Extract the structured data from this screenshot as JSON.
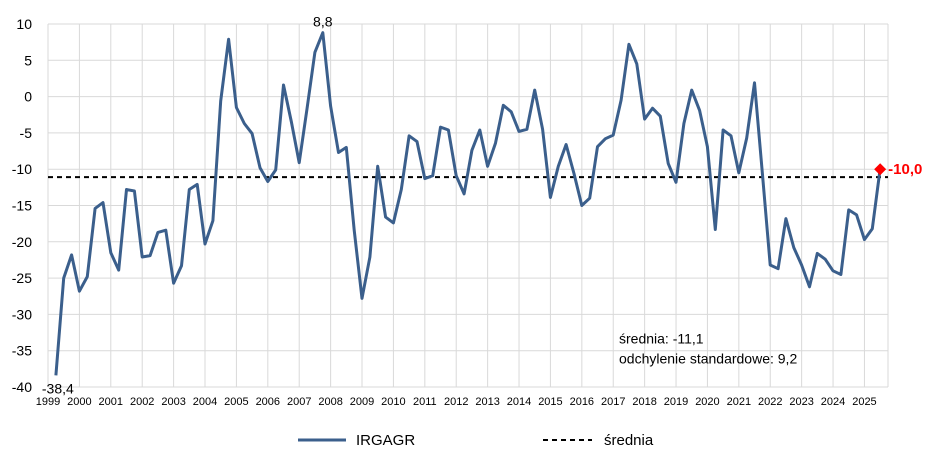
{
  "chart_data": {
    "type": "line",
    "title": "",
    "xlabel": "",
    "ylabel": "",
    "ylim": [
      -40,
      10
    ],
    "yticks": [
      10,
      5,
      0,
      -5,
      -10,
      -15,
      -20,
      -25,
      -30,
      -35,
      -40
    ],
    "ytick_labels": [
      "10",
      "5",
      "0",
      "-5",
      "-10",
      "-15",
      "-20",
      "-25",
      "-30",
      "-35",
      "-40"
    ],
    "xlim": [
      1999.0,
      2025.75
    ],
    "xtick_labels": [
      "1999",
      "2000",
      "2001",
      "2002",
      "2003",
      "2004",
      "2005",
      "2006",
      "2007",
      "2008",
      "2009",
      "2010",
      "2011",
      "2012",
      "2013",
      "2014",
      "2015",
      "2016",
      "2017",
      "2018",
      "2019",
      "2020",
      "2021",
      "2022",
      "2023",
      "2024",
      "2025"
    ],
    "grid": true,
    "legend_position": "bottom",
    "series": [
      {
        "name": "IRGAGR",
        "color": "#3b5f8c",
        "x_start": 1999.25,
        "x_step": 0.25,
        "values": [
          -38.4,
          -25,
          -21.8,
          -26.8,
          -24.8,
          -15.4,
          -14.6,
          -21.5,
          -23.9,
          -12.8,
          -13,
          -22.1,
          -21.9,
          -18.7,
          -18.4,
          -25.7,
          -23.3,
          -12.8,
          -12.1,
          -20.3,
          -17.1,
          -0.6,
          7.9,
          -1.5,
          -3.7,
          -5.1,
          -9.8,
          -11.7,
          -10.1,
          1.6,
          -3.5,
          -9.1,
          -1.6,
          6.1,
          8.8,
          -1.3,
          -7.7,
          -7,
          -18.4,
          -27.8,
          -22.1,
          -9.6,
          -16.6,
          -17.4,
          -12.8,
          -5.4,
          -6.2,
          -11.3,
          -10.9,
          -4.2,
          -4.6,
          -10.9,
          -13.4,
          -7.4,
          -4.6,
          -9.6,
          -6.4,
          -1.2,
          -2.1,
          -4.8,
          -4.5,
          0.9,
          -4.5,
          -13.9,
          -9.6,
          -6.6,
          -10.6,
          -15,
          -14,
          -6.9,
          -5.8,
          -5.3,
          -0.5,
          7.2,
          4.5,
          -3.1,
          -1.6,
          -2.7,
          -9.2,
          -11.8,
          -3.7,
          0.9,
          -1.9,
          -6.9,
          -18.3,
          -4.6,
          -5.4,
          -10.5,
          -5.7,
          1.9,
          -10.6,
          -23.2,
          -23.7,
          -16.8,
          -20.8,
          -23.2,
          -26.2,
          -21.6,
          -22.4,
          -24,
          -24.5,
          -15.6,
          -16.3,
          -19.7,
          -18.2,
          -10
        ]
      }
    ],
    "mean": {
      "name": "średnia",
      "value": -11.1,
      "style": "dashed",
      "color": "#000000"
    },
    "annotations": {
      "min_label": "-38,4",
      "max_label": "8,8",
      "last_label": "-10,0",
      "last_color": "#ff0000",
      "stats_line1": "średnia: -11,1",
      "stats_line2": "odchylenie standardowe: 9,2"
    }
  }
}
